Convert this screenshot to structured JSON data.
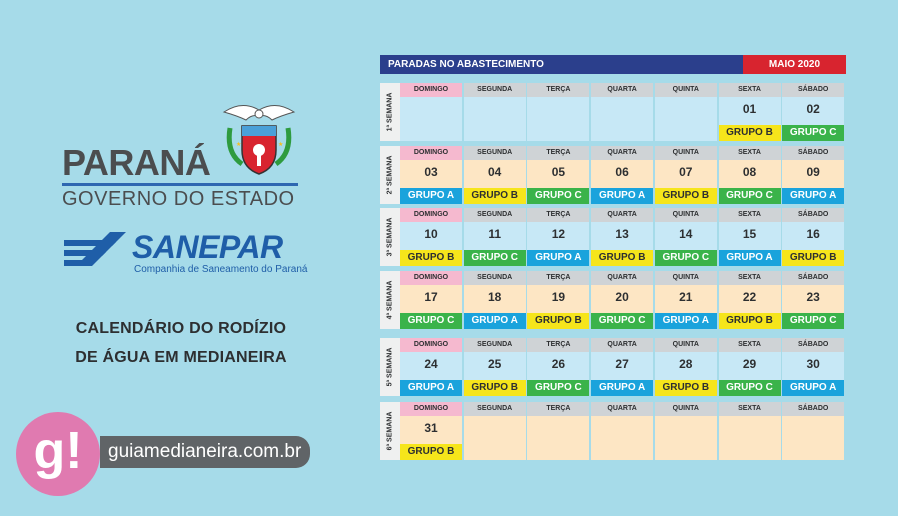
{
  "branding": {
    "state_name": "PARANÁ",
    "state_sub": "GOVERNO DO ESTADO",
    "company_name": "SANEPAR",
    "company_sub": "Companhia de Saneamento do Paraná",
    "title_line1": "CALENDÁRIO DO RODÍZIO",
    "title_line2": "DE ÁGUA EM MEDIANEIRA",
    "site_logo": "g!",
    "site_name": "guiamedianeira.com.br"
  },
  "calendar": {
    "header": "PARADAS NO ABASTECIMENTO",
    "month": "MAIO 2020",
    "weeks": [
      {
        "label": "1ª SEMANA",
        "days": [
          {
            "name": "DOMINGO",
            "num": "",
            "group": ""
          },
          {
            "name": "SEGUNDA",
            "num": "",
            "group": ""
          },
          {
            "name": "TERÇA",
            "num": "",
            "group": ""
          },
          {
            "name": "QUARTA",
            "num": "",
            "group": ""
          },
          {
            "name": "QUINTA",
            "num": "",
            "group": ""
          },
          {
            "name": "SEXTA",
            "num": "01",
            "group": "GRUPO B"
          },
          {
            "name": "SÁBADO",
            "num": "02",
            "group": "GRUPO C"
          }
        ]
      },
      {
        "label": "2ª SEMANA",
        "days": [
          {
            "name": "DOMINGO",
            "num": "03",
            "group": "GRUPO A"
          },
          {
            "name": "SEGUNDA",
            "num": "04",
            "group": "GRUPO B"
          },
          {
            "name": "TERÇA",
            "num": "05",
            "group": "GRUPO C"
          },
          {
            "name": "QUARTA",
            "num": "06",
            "group": "GRUPO A"
          },
          {
            "name": "QUINTA",
            "num": "07",
            "group": "GRUPO B"
          },
          {
            "name": "SEXTA",
            "num": "08",
            "group": "GRUPO C"
          },
          {
            "name": "SÁBADO",
            "num": "09",
            "group": "GRUPO A"
          }
        ]
      },
      {
        "label": "3ª SEMANA",
        "days": [
          {
            "name": "DOMINGO",
            "num": "10",
            "group": "GRUPO B"
          },
          {
            "name": "SEGUNDA",
            "num": "11",
            "group": "GRUPO C"
          },
          {
            "name": "TERÇA",
            "num": "12",
            "group": "GRUPO A"
          },
          {
            "name": "QUARTA",
            "num": "13",
            "group": "GRUPO B"
          },
          {
            "name": "QUINTA",
            "num": "14",
            "group": "GRUPO C"
          },
          {
            "name": "SEXTA",
            "num": "15",
            "group": "GRUPO A"
          },
          {
            "name": "SÁBADO",
            "num": "16",
            "group": "GRUPO B"
          }
        ]
      },
      {
        "label": "4ª SEMANA",
        "days": [
          {
            "name": "DOMINGO",
            "num": "17",
            "group": "GRUPO C"
          },
          {
            "name": "SEGUNDA",
            "num": "18",
            "group": "GRUPO A"
          },
          {
            "name": "TERÇA",
            "num": "19",
            "group": "GRUPO B"
          },
          {
            "name": "QUARTA",
            "num": "20",
            "group": "GRUPO C"
          },
          {
            "name": "QUINTA",
            "num": "21",
            "group": "GRUPO A"
          },
          {
            "name": "SEXTA",
            "num": "22",
            "group": "GRUPO B"
          },
          {
            "name": "SÁBADO",
            "num": "23",
            "group": "GRUPO C"
          }
        ]
      },
      {
        "label": "5ª SEMANA",
        "days": [
          {
            "name": "DOMINGO",
            "num": "24",
            "group": "GRUPO A"
          },
          {
            "name": "SEGUNDA",
            "num": "25",
            "group": "GRUPO B"
          },
          {
            "name": "TERÇA",
            "num": "26",
            "group": "GRUPO C"
          },
          {
            "name": "QUARTA",
            "num": "27",
            "group": "GRUPO A"
          },
          {
            "name": "QUINTA",
            "num": "28",
            "group": "GRUPO B"
          },
          {
            "name": "SEXTA",
            "num": "29",
            "group": "GRUPO C"
          },
          {
            "name": "SÁBADO",
            "num": "30",
            "group": "GRUPO A"
          }
        ]
      },
      {
        "label": "6ª SEMANA",
        "days": [
          {
            "name": "DOMINGO",
            "num": "31",
            "group": "GRUPO B"
          },
          {
            "name": "SEGUNDA",
            "num": "",
            "group": ""
          },
          {
            "name": "TERÇA",
            "num": "",
            "group": ""
          },
          {
            "name": "QUARTA",
            "num": "",
            "group": ""
          },
          {
            "name": "QUINTA",
            "num": "",
            "group": ""
          },
          {
            "name": "SEXTA",
            "num": "",
            "group": ""
          },
          {
            "name": "SÁBADO",
            "num": "",
            "group": ""
          }
        ]
      }
    ]
  },
  "colors": {
    "background": "#a6dbe9",
    "header_blue": "#2b3f8c",
    "month_red": "#d8242f",
    "group_a": "#1aa3dc",
    "group_b": "#f6e51b",
    "group_c": "#3ab34a"
  }
}
